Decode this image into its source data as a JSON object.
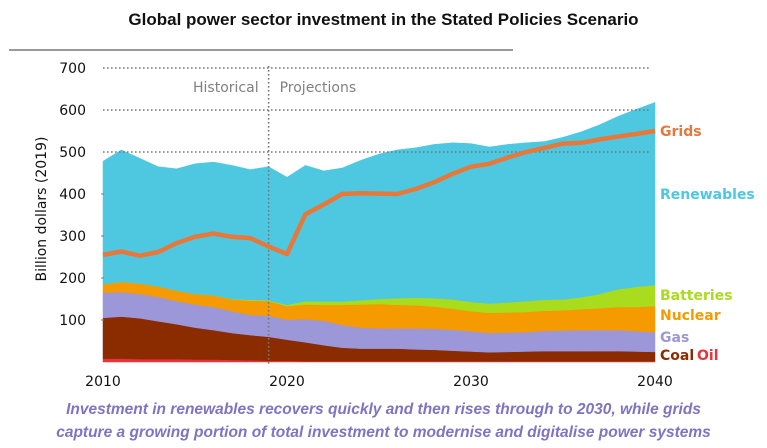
{
  "title": "Global power sector investment in the Stated Policies Scenario",
  "caption": {
    "line1": "Investment in renewables recovers quickly and then rises through to 2030, while grids",
    "line2": "capture a growing portion of total investment to modernise and digitalise power systems"
  },
  "chart_data": {
    "type": "area",
    "title": "Global power sector investment in the Stated Policies Scenario",
    "xlabel": "",
    "ylabel": "Billion dollars (2019)",
    "xlim": [
      2010,
      2040
    ],
    "ylim": [
      0,
      700
    ],
    "x_ticks": [
      "2010",
      "2020",
      "2030",
      "2040"
    ],
    "y_ticks": [
      "100",
      "200",
      "300",
      "400",
      "500",
      "600",
      "700"
    ],
    "grid": "horizontal dotted",
    "divider_year": 2019,
    "period_labels": {
      "historical": "Historical",
      "projections": "Projections"
    },
    "legend_placement": "right (inline labels)",
    "x": [
      2010,
      2011,
      2012,
      2013,
      2014,
      2015,
      2016,
      2017,
      2018,
      2019,
      2020,
      2021,
      2022,
      2023,
      2024,
      2025,
      2026,
      2027,
      2028,
      2029,
      2030,
      2031,
      2032,
      2033,
      2034,
      2035,
      2036,
      2037,
      2038,
      2039,
      2040
    ],
    "stacked_series": [
      {
        "name": "Oil",
        "color": "#e8323c",
        "values": [
          8,
          8,
          7,
          7,
          7,
          6,
          6,
          5,
          4,
          3,
          3,
          2,
          2,
          2,
          2,
          2,
          2,
          2,
          2,
          2,
          2,
          2,
          2,
          2,
          2,
          2,
          2,
          2,
          2,
          2,
          2
        ]
      },
      {
        "name": "Coal",
        "color": "#8b2b00",
        "values": [
          97,
          100,
          97,
          90,
          83,
          76,
          70,
          64,
          60,
          57,
          50,
          45,
          38,
          32,
          30,
          30,
          30,
          28,
          27,
          25,
          23,
          21,
          22,
          23,
          24,
          24,
          24,
          24,
          24,
          23,
          22
        ]
      },
      {
        "name": "Gas",
        "color": "#9b97d9",
        "values": [
          60,
          58,
          58,
          58,
          55,
          55,
          55,
          52,
          48,
          50,
          48,
          55,
          58,
          54,
          50,
          48,
          48,
          50,
          50,
          50,
          48,
          46,
          46,
          46,
          48,
          49,
          50,
          50,
          50,
          48,
          47
        ]
      },
      {
        "name": "Nuclear",
        "color": "#f59a00",
        "values": [
          20,
          25,
          25,
          25,
          25,
          25,
          28,
          28,
          34,
          35,
          32,
          35,
          38,
          48,
          55,
          58,
          56,
          55,
          53,
          50,
          48,
          48,
          48,
          48,
          48,
          48,
          50,
          52,
          55,
          58,
          62
        ]
      },
      {
        "name": "Batteries",
        "color": "#a8dc1c",
        "values": [
          0,
          0,
          0,
          0,
          0,
          0,
          0,
          1,
          2,
          2,
          3,
          8,
          8,
          8,
          10,
          12,
          16,
          18,
          20,
          22,
          22,
          22,
          24,
          26,
          26,
          26,
          28,
          34,
          42,
          48,
          50
        ]
      },
      {
        "name": "Renewables",
        "color": "#4dc8e0",
        "values": [
          293,
          314,
          298,
          285,
          290,
          310,
          317,
          318,
          310,
          318,
          304,
          323,
          311,
          318,
          333,
          345,
          353,
          357,
          366,
          373,
          377,
          373,
          376,
          377,
          377,
          386,
          394,
          403,
          412,
          423,
          435
        ]
      }
    ],
    "line_series": [
      {
        "name": "Grids",
        "color": "#e8773a",
        "values": [
          255,
          263,
          253,
          262,
          283,
          298,
          306,
          298,
          295,
          275,
          257,
          352,
          375,
          400,
          402,
          401,
          400,
          412,
          428,
          448,
          465,
          472,
          487,
          500,
          510,
          520,
          522,
          530,
          537,
          543,
          550
        ]
      }
    ],
    "legend": [
      {
        "label": "Grids",
        "color": "#e8773a",
        "anchor_value": 550
      },
      {
        "label": "Renewables",
        "color": "#4dc8e0",
        "anchor_value": 400
      },
      {
        "label": "Batteries",
        "color": "#a8dc1c",
        "anchor_value": 160
      },
      {
        "label": "Nuclear",
        "color": "#f59a00",
        "anchor_value": 112
      },
      {
        "label": "Gas",
        "color": "#9b97d9",
        "anchor_value": 52
      },
      {
        "label": "Coal",
        "color": "#8b2b00",
        "anchor_value": 17
      },
      {
        "label": "Oil",
        "color": "#e8323c",
        "anchor_value": 17
      }
    ]
  }
}
